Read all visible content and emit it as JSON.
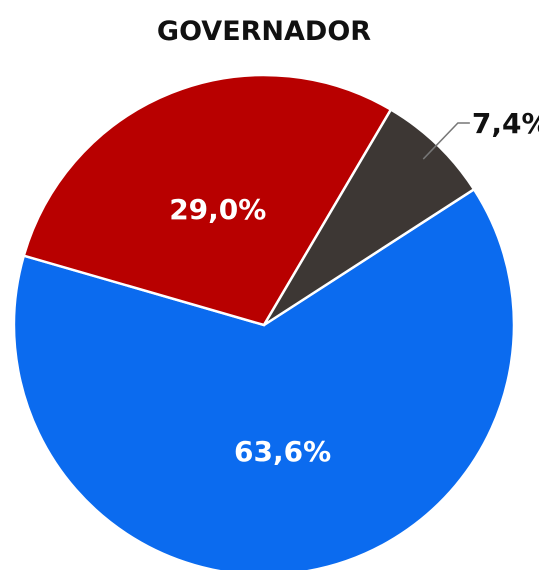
{
  "chart_data": {
    "type": "pie",
    "title": "GOVERNADOR",
    "slices": [
      {
        "label": "63,6%",
        "value": 63.6,
        "color": "#0b6bef"
      },
      {
        "label": "29,0%",
        "value": 29.0,
        "color": "#b80000"
      },
      {
        "label": "7,4%",
        "value": 7.4,
        "color": "#3d3734"
      }
    ],
    "label_colors": {
      "inside": "#ffffff",
      "outside": "#111111"
    }
  }
}
